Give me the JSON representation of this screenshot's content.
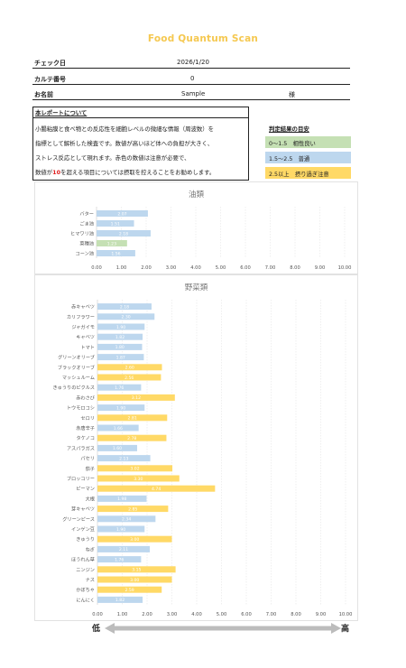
{
  "title": "Food Quantum Scan",
  "header": {
    "check_date_label": "チェック日",
    "check_date": "2026/1/20",
    "karte_label": "カルテ番号",
    "karte": "0",
    "name_label": "お名前",
    "name": "Sample",
    "honorific": "様"
  },
  "report": {
    "heading": "本レポートについて",
    "line1": "小腸粘膜と食べ物との反応性を細胞レベルの微細な情報（周波数）を",
    "line2": "指標として解析した検査です。数値が高いほど体への負担が大きく、",
    "line3": "ストレス反応として現れます。赤色の数値は注意が必要で、",
    "line4a": "数値が",
    "line4_red": "10",
    "line4b": "を超える項目については摂取を控えることをお勧めします。"
  },
  "guide": {
    "title": "判定結果の目安",
    "good": "0～1.5　相性良い",
    "normal": "1.5～2.5　普通",
    "caution": "2.5以上　摂り過ぎ注意"
  },
  "colors": {
    "good": "#c5e0b4",
    "normal": "#bdd7ee",
    "caution": "#ffd966"
  },
  "chart_data": [
    {
      "type": "bar",
      "title": "油類",
      "xlim": [
        0,
        10
      ],
      "xticks": [
        "0.00",
        "1.00",
        "2.00",
        "3.00",
        "4.00",
        "5.00",
        "6.00",
        "7.00",
        "8.00",
        "9.00",
        "10.00"
      ],
      "categories": [
        "バター",
        "ごま油",
        "ヒマワリ油",
        "菜種油",
        "コーン油"
      ],
      "values": [
        2.07,
        1.51,
        2.18,
        1.23,
        1.56
      ]
    },
    {
      "type": "bar",
      "title": "野菜類",
      "xlim": [
        0,
        10
      ],
      "xticks": [
        "0.00",
        "1.00",
        "2.00",
        "3.00",
        "4.00",
        "5.00",
        "6.00",
        "7.00",
        "8.00",
        "9.00",
        "10.00"
      ],
      "categories": [
        "赤キャベツ",
        "カリフラワー",
        "ジャガイモ",
        "キャベツ",
        "トマト",
        "グリーンオリーブ",
        "ブラックオリーブ",
        "マッシュルーム",
        "きゅうりのピクルス",
        "赤わさび",
        "トウモロコシ",
        "セロリ",
        "赤唐辛子",
        "タケノコ",
        "アスパラガス",
        "パセリ",
        "茄子",
        "ブロッコリー",
        "ピーマン",
        "大根",
        "芽キャベツ",
        "グリーンピース",
        "インゲン豆",
        "きゅうり",
        "ねぎ",
        "ほうれん草",
        "ニンジン",
        "ナス",
        "かぼちゃ",
        "にんにく"
      ],
      "values": [
        2.18,
        2.3,
        1.9,
        1.82,
        1.8,
        1.87,
        2.6,
        2.56,
        1.76,
        3.12,
        1.9,
        2.81,
        1.66,
        2.78,
        1.6,
        2.13,
        3.02,
        3.3,
        4.74,
        1.98,
        2.85,
        2.34,
        1.9,
        3.0,
        2.11,
        1.76,
        3.15,
        3.0,
        2.59,
        1.82
      ]
    }
  ],
  "scale": {
    "low": "低",
    "high": "高"
  }
}
